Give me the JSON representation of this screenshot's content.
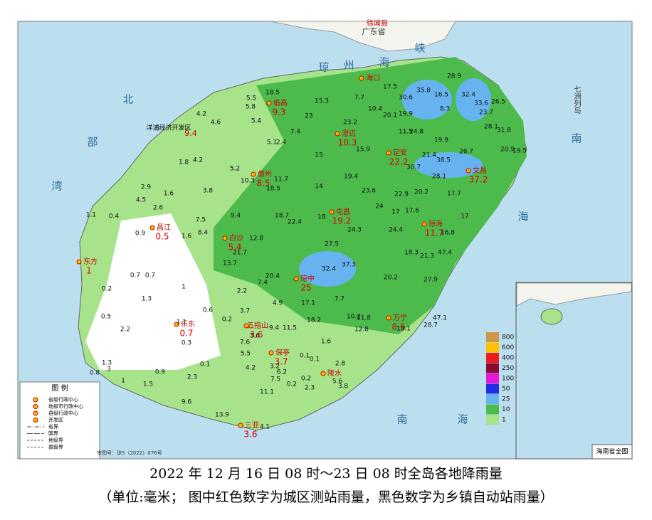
{
  "map": {
    "region": "广东省",
    "county_top": "徐闻县",
    "islands_label": "七洲列岛",
    "sea_labels": [
      "琼",
      "州",
      "海",
      "峡",
      "北",
      "部",
      "湾",
      "南",
      "海",
      "南",
      "海"
    ],
    "dev_zone": {
      "name": "洋浦经济开发区",
      "value": 9.4
    },
    "cities": [
      {
        "name": "海口"
      },
      {
        "name": "临高",
        "value": 9.3
      },
      {
        "name": "澄迈",
        "value": 10.3
      },
      {
        "name": "定安",
        "value": 22.2
      },
      {
        "name": "文昌",
        "value": 37.2
      },
      {
        "name": "儋州",
        "value": 8.5
      },
      {
        "name": "屯昌",
        "value": 19.2
      },
      {
        "name": "琼海",
        "value": 11.7
      },
      {
        "name": "昌江",
        "value": 0.5
      },
      {
        "name": "白沙",
        "value": 5.4
      },
      {
        "name": "东方",
        "value": 1.0
      },
      {
        "name": "琼中",
        "value": 25
      },
      {
        "name": "万宁",
        "value": 8.6
      },
      {
        "name": "乐东",
        "value": 0.7
      },
      {
        "name": "五指山",
        "value": 3.6
      },
      {
        "name": "保亭",
        "value": 3.7
      },
      {
        "name": "陵水"
      },
      {
        "name": "三亚",
        "value": 3.6
      }
    ],
    "stations": [
      18.5,
      5.5,
      5.8,
      15.3,
      7.7,
      17.5,
      30.6,
      35.8,
      28.9,
      16.5,
      32.4,
      33.6,
      26.5,
      4.2,
      4.6,
      5.4,
      23.0,
      23.2,
      10.4,
      20.1,
      19.9,
      8.3,
      23.7,
      28.1,
      31.8,
      20.9,
      19.5,
      11.5,
      24.8,
      19.9,
      7.4,
      5.1,
      2.4,
      15.9,
      4.2,
      1.8,
      5.2,
      15.0,
      21.4,
      38.5,
      26.7,
      30.7,
      28.1,
      19.4,
      10.3,
      11.7,
      18.5,
      14.0,
      23.6,
      22.9,
      20.2,
      17.7,
      2.9,
      1.6,
      3.8,
      4.5,
      2.6,
      0.4,
      1.1,
      7.5,
      9.4,
      18.7,
      18.0,
      24.0,
      17.0,
      17.6,
      17.0,
      22.4,
      24.3,
      24.4,
      16.8,
      0.9,
      1.6,
      8.4,
      12.8,
      27.5,
      18.3,
      21.3,
      47.4,
      21.7,
      13.7,
      32.4,
      37.3,
      20.4,
      20.2,
      27.9,
      0.7,
      0.7,
      1.0,
      0.2,
      7.4,
      2.2,
      17.1,
      4.9,
      7.7,
      1.3,
      0.6,
      3.7,
      18.2,
      10.2,
      11.8,
      47.1,
      28.7,
      0.5,
      2.2,
      1.1,
      0.2,
      9.4,
      11.5,
      12.8,
      3.6,
      13.1,
      0.3,
      7.6,
      1.6,
      5.5,
      0.1,
      0.1,
      2.8,
      3.0,
      0.1,
      4.2,
      3.2,
      6.2,
      1.3,
      0.8,
      0.9,
      7.5,
      2.3,
      0.2,
      5.6,
      1.0,
      1.5,
      3.8,
      0.2,
      2.3,
      11.1,
      9.6,
      13.9,
      4.1
    ],
    "scale": [
      {
        "value": 800,
        "color": "#c9984a"
      },
      {
        "value": 600,
        "color": "#ffc000"
      },
      {
        "value": 400,
        "color": "#ee1c1c"
      },
      {
        "value": 250,
        "color": "#8c0a36"
      },
      {
        "value": 100,
        "color": "#e619d6"
      },
      {
        "value": 50,
        "color": "#1e2fe6"
      },
      {
        "value": 25,
        "color": "#67b3ef"
      },
      {
        "value": 10,
        "color": "#4cbb4c"
      },
      {
        "value": 1,
        "color": "#a6e38a"
      }
    ],
    "legend": {
      "title": "图 例",
      "items": [
        "省级行政中心",
        "地级市行政中心",
        "县级行政中心",
        "开发区",
        "省界",
        "国界",
        "地级界",
        "县级界"
      ]
    },
    "approval": "审图号：琼S（2022）076号",
    "inset_title": "海南省全图"
  },
  "caption": {
    "title": "2022 年 12 月 16 日 08 时～23 日 08 时全岛各地降雨量",
    "subtitle": "（单位:毫米； 图中红色数字为城区测站雨量，黑色数字为乡镇自动站雨量）"
  }
}
